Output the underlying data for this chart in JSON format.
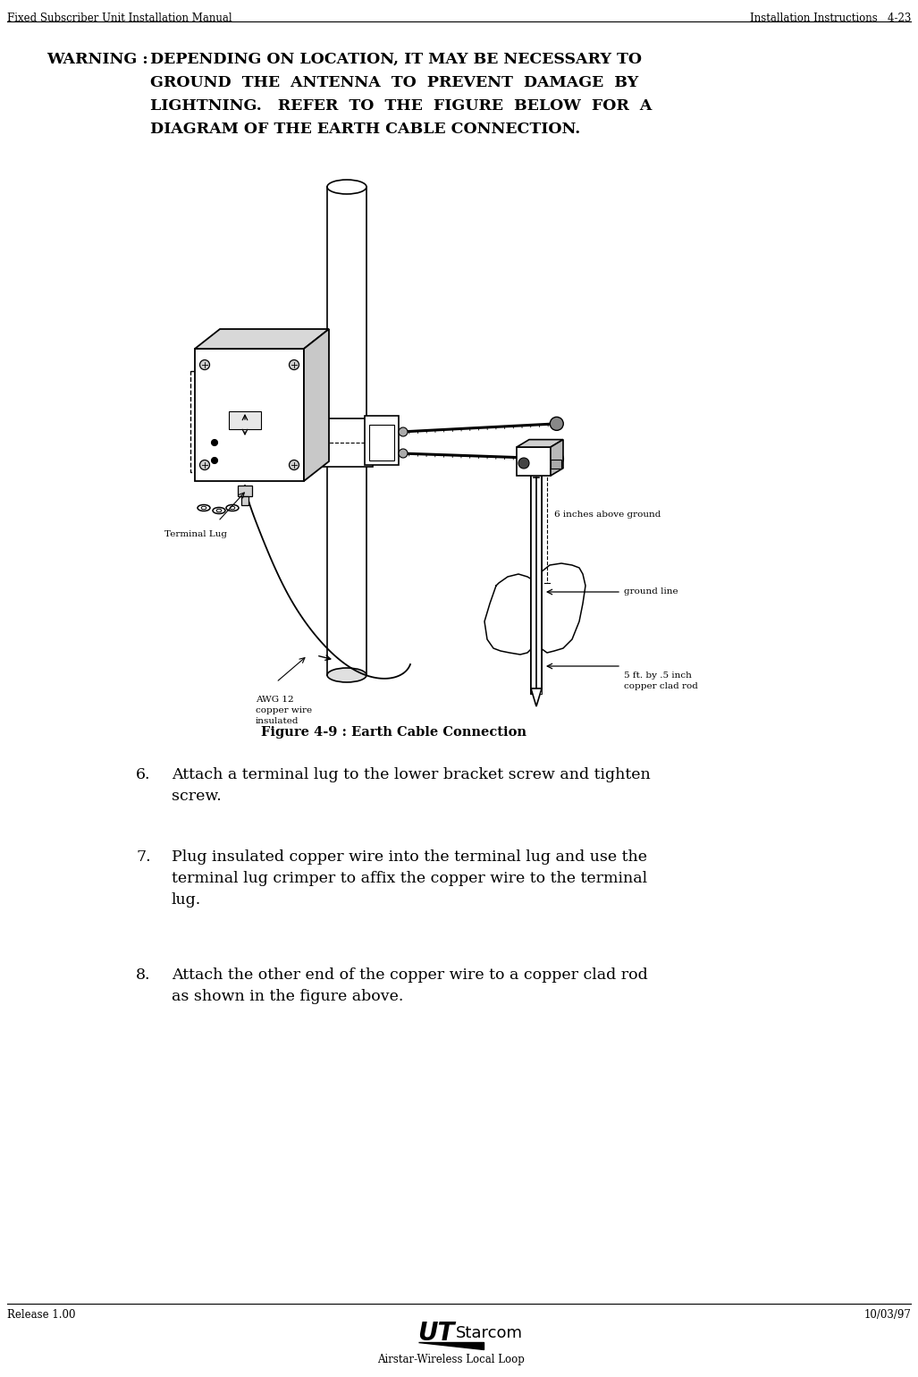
{
  "page_title_left": "Fixed Subscriber Unit Installation Manual",
  "page_title_right": "Installation Instructions   4-23",
  "footer_left": "Release 1.00",
  "footer_right": "10/03/97",
  "footer_center": "Airstar-Wireless Local Loop",
  "warning_label": "WARNING :  ",
  "warning_text_line1": "DEPENDING ON LOCATION, IT MAY BE NECESSARY TO",
  "warning_text_line2": "GROUND  THE  ANTENNA  TO  PREVENT  DAMAGE  BY",
  "warning_text_line3": "LIGHTNING.   REFER  TO  THE  FIGURE  BELOW  FOR  A",
  "warning_text_line4": "DIAGRAM OF THE EARTH CABLE CONNECTION.",
  "figure_caption": "Figure 4-9 : Earth Cable Connection",
  "label_terminal_lug": "Terminal Lug",
  "label_awg": "AWG 12\ncopper wire\ninsulated",
  "label_6inches": "6 inches above ground",
  "label_ground_line": "ground line",
  "label_rod": "5 ft. by .5 inch\ncopper clad rod",
  "bg_color": "#ffffff",
  "text_color": "#000000",
  "line_color": "#000000"
}
